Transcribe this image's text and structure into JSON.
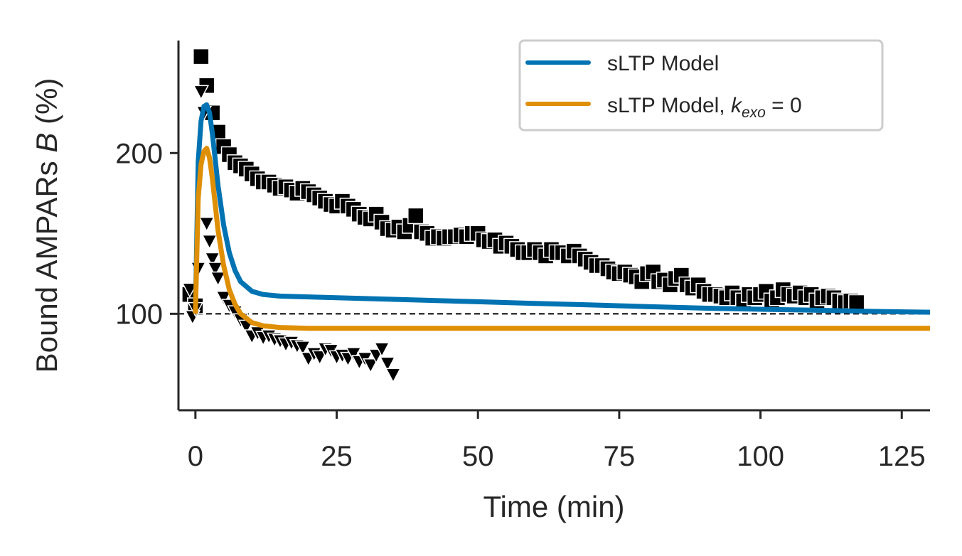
{
  "chart_data": {
    "type": "line",
    "xlabel": "Time (min)",
    "ylabel_parts": [
      "Bound AMPARs ",
      "B",
      " (%)"
    ],
    "xlim": [
      -3,
      130
    ],
    "ylim": [
      40,
      270
    ],
    "xticks": [
      0,
      25,
      50,
      75,
      100,
      125
    ],
    "yticks": [
      100,
      200
    ],
    "x_tick_labels": [
      "0",
      "25",
      "50",
      "75",
      "100",
      "125"
    ],
    "y_tick_labels": [
      "100",
      "200"
    ],
    "grid": false,
    "legend_position": "top-right",
    "reference_line": {
      "y": 100,
      "style": "dashed",
      "color": "#000000"
    },
    "series": [
      {
        "name": "sLTP Model",
        "kind": "line",
        "color": "#0173b2",
        "x": [
          0,
          0.5,
          1,
          1.5,
          2,
          2.5,
          3,
          3.5,
          4,
          5,
          6,
          7,
          8,
          10,
          12,
          15,
          20,
          25,
          30,
          40,
          50,
          60,
          70,
          80,
          90,
          100,
          110,
          120,
          130
        ],
        "y": [
          100,
          195,
          220,
          229,
          230,
          225,
          212,
          196,
          180,
          155,
          138,
          127,
          120,
          114,
          112,
          111,
          110.5,
          110,
          109.5,
          108.5,
          107.5,
          106.5,
          105.5,
          104.5,
          103.5,
          102.8,
          102.2,
          101.5,
          101
        ]
      },
      {
        "name": "sLTP Model, k_exo = 0",
        "name_parts": [
          "sLTP Model, ",
          "k",
          "exo",
          " = 0"
        ],
        "kind": "line",
        "color": "#de8f05",
        "x": [
          0,
          0.5,
          1,
          1.5,
          2,
          2.5,
          3,
          3.5,
          4,
          5,
          6,
          7,
          8,
          10,
          12,
          15,
          20,
          30,
          50,
          75,
          100,
          130
        ],
        "y": [
          100,
          172,
          193,
          201,
          203,
          197,
          184,
          168,
          152,
          130,
          115,
          106,
          100,
          94.5,
          92.5,
          91.5,
          91,
          91,
          91,
          91,
          91,
          91
        ]
      },
      {
        "name": "",
        "kind": "scatter",
        "marker": "square",
        "color": "#000000",
        "x": [
          -1,
          0,
          1,
          2,
          3,
          4,
          5,
          6,
          7,
          8,
          9,
          10,
          11,
          12,
          13,
          14,
          15,
          16,
          17,
          18,
          19,
          20,
          21,
          22,
          23,
          24,
          25,
          26,
          27,
          28,
          29,
          30,
          31,
          32,
          33,
          34,
          35,
          36,
          37,
          38,
          39,
          40,
          41,
          42,
          43,
          44,
          45,
          46,
          47,
          48,
          49,
          50,
          51,
          52,
          53,
          54,
          55,
          56,
          57,
          58,
          59,
          60,
          61,
          62,
          63,
          64,
          65,
          66,
          67,
          68,
          69,
          70,
          71,
          72,
          73,
          74,
          75,
          76,
          77,
          78,
          79,
          80,
          81,
          82,
          83,
          84,
          85,
          86,
          87,
          88,
          89,
          90,
          91,
          92,
          93,
          94,
          95,
          96,
          97,
          98,
          99,
          100,
          101,
          102,
          103,
          104,
          105,
          106,
          107,
          108,
          109,
          110,
          111,
          112,
          113,
          114,
          115,
          116,
          117
        ],
        "y": [
          112,
          105,
          260,
          242,
          225,
          213,
          204,
          199,
          194,
          192,
          190,
          187,
          184,
          182,
          182,
          180,
          178,
          179,
          177,
          175,
          178,
          176,
          174,
          172,
          170,
          168,
          167,
          170,
          167,
          165,
          162,
          160,
          159,
          162,
          157,
          153,
          152,
          154,
          151,
          155,
          161,
          151,
          150,
          147,
          148,
          147,
          148,
          148,
          149,
          148,
          150,
          150,
          146,
          145,
          146,
          142,
          144,
          142,
          140,
          138,
          138,
          140,
          138,
          136,
          140,
          138,
          138,
          136,
          139,
          136,
          134,
          132,
          130,
          130,
          128,
          126,
          125,
          126,
          124,
          123,
          120,
          125,
          126,
          120,
          121,
          118,
          122,
          124,
          118,
          116,
          118,
          114,
          112,
          112,
          111,
          110,
          113,
          110,
          108,
          112,
          110,
          112,
          114,
          108,
          110,
          115,
          112,
          111,
          113,
          110,
          112,
          108,
          110,
          111,
          110,
          108,
          107,
          108,
          107
        ]
      },
      {
        "name": "",
        "kind": "scatter",
        "marker": "triangle-down",
        "color": "#000000",
        "x": [
          -1,
          -0.5,
          0,
          0.5,
          1,
          1.5,
          2,
          2.5,
          3,
          3.5,
          4,
          5,
          6,
          7,
          8,
          9,
          10,
          11,
          12,
          13,
          14,
          15,
          16,
          17,
          18,
          19,
          20,
          21,
          22,
          23,
          24,
          25,
          26,
          27,
          28,
          29,
          30,
          31,
          32,
          33,
          34,
          35
        ],
        "y": [
          115,
          98,
          103,
          128,
          238,
          225,
          156,
          145,
          134,
          128,
          122,
          110,
          105,
          101,
          96,
          92,
          86,
          88,
          85,
          86,
          84,
          83,
          81,
          82,
          80,
          79,
          72,
          75,
          73,
          78,
          77,
          73,
          74,
          72,
          75,
          70,
          72,
          68,
          74,
          78,
          69,
          62
        ]
      }
    ]
  }
}
